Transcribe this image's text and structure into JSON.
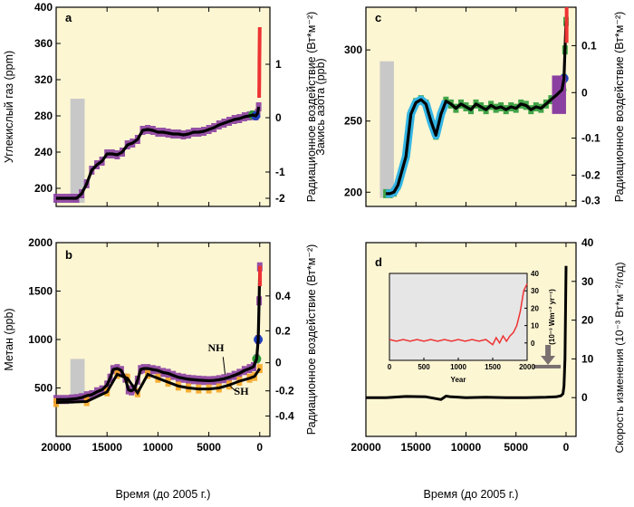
{
  "colors": {
    "panel_bg": "#fdf6d3",
    "inset_bg": "#e6e6e6",
    "core_purple": "#8b3fa0",
    "core_cyan": "#33b5e5",
    "core_green": "#2e9b3a",
    "core_blue": "#1f3fbf",
    "instrumental_red": "#ee3333",
    "orange_sh": "#f5a623",
    "gray_bar": "#c8c8c8",
    "arrow": "#7a7070",
    "curve": "#000000"
  },
  "x_axis_label": "Время (до 2005 г.)",
  "chart_data": [
    {
      "id": "a",
      "type": "line",
      "panel_label": "a",
      "ylabel": "Углекислый газ (ppm)",
      "ylabel_right": "Радиационное воздействие (Вт*м⁻²)",
      "xlim": [
        20000,
        -1000
      ],
      "ylim": [
        180,
        400
      ],
      "x_ticks": [
        20000,
        15000,
        10000,
        5000,
        0
      ],
      "x_tick_labels": [
        "",
        "",
        "",
        "",
        ""
      ],
      "y_ticks": [
        200,
        240,
        280,
        320,
        360,
        400
      ],
      "y_tick_labels": [
        "200",
        "240",
        "280",
        "320",
        "360",
        "400"
      ],
      "right_ticks": [
        -2,
        -1,
        0,
        1
      ],
      "right_tick_labels": [
        "-2",
        "-1",
        "0",
        "1"
      ],
      "right_tick_values": [
        189,
        218,
        278,
        337
      ],
      "gray_bar": {
        "x": [
          18600,
          17200
        ],
        "y": [
          184,
          299
        ]
      },
      "series": [
        {
          "name": "ice-core",
          "color_key": "core_purple",
          "x": [
            20000,
            19500,
            19000,
            18500,
            18000,
            17500,
            17000,
            16500,
            16000,
            15500,
            15000,
            14500,
            14000,
            13500,
            13000,
            12500,
            12000,
            11500,
            11000,
            10500,
            10000,
            9500,
            9000,
            8500,
            8000,
            7500,
            7000,
            6500,
            6000,
            5500,
            5000,
            4500,
            4000,
            3500,
            3000,
            2500,
            2000,
            1500,
            1000,
            700,
            400,
            200,
            100
          ],
          "y": [
            189,
            189,
            189,
            189,
            189,
            194,
            205,
            220,
            226,
            230,
            238,
            238,
            237,
            240,
            248,
            250,
            254,
            264,
            265,
            264,
            262,
            262,
            261,
            260,
            260,
            259,
            260,
            262,
            262,
            263,
            265,
            267,
            270,
            272,
            274,
            276,
            277,
            279,
            280,
            281,
            280,
            283,
            290
          ]
        },
        {
          "name": "instrumental",
          "color_key": "instrumental_red",
          "x": [
            60,
            45,
            30,
            15,
            0
          ],
          "y": [
            300,
            320,
            340,
            360,
            378
          ]
        }
      ]
    },
    {
      "id": "b",
      "type": "line",
      "panel_label": "b",
      "ylabel": "Метан (ppb)",
      "ylabel_right": "Радиационное воздействие (Вт*м⁻²)",
      "xlim": [
        20000,
        -1000
      ],
      "ylim": [
        0,
        2000
      ],
      "x_ticks": [
        20000,
        15000,
        10000,
        5000,
        0
      ],
      "x_tick_labels": [
        "20000",
        "15000",
        "10000",
        "5000",
        "0"
      ],
      "y_ticks": [
        500,
        1000,
        1500,
        2000
      ],
      "y_tick_labels": [
        "500",
        "1000",
        "1500",
        "2000"
      ],
      "right_ticks": [
        -0.4,
        -0.2,
        0,
        0.2,
        0.4
      ],
      "right_tick_labels": [
        "-0.4",
        "-0.2",
        "0",
        "0.2",
        "0.4"
      ],
      "right_tick_values": [
        210,
        470,
        760,
        1090,
        1450
      ],
      "gray_bar": {
        "x": [
          18600,
          17200
        ],
        "y": [
          360,
          800
        ]
      },
      "annotations": [
        {
          "text": "NH",
          "x": 4300,
          "y": 880
        },
        {
          "text": "SH",
          "x": 1800,
          "y": 430
        }
      ],
      "series": [
        {
          "name": "NH",
          "color_key": "core_purple",
          "x": [
            20000,
            19500,
            19000,
            18500,
            18000,
            17500,
            17000,
            16500,
            16000,
            15500,
            15000,
            14700,
            14400,
            14000,
            13600,
            13200,
            12900,
            12600,
            12300,
            12000,
            11700,
            11400,
            11000,
            10500,
            10000,
            9500,
            9000,
            8500,
            8000,
            7500,
            7000,
            6500,
            6000,
            5500,
            5000,
            4500,
            4000,
            3500,
            3000,
            2500,
            2000,
            1500,
            1000,
            600,
            300,
            150,
            60,
            0
          ],
          "y": [
            380,
            380,
            380,
            385,
            390,
            400,
            420,
            430,
            460,
            480,
            530,
            600,
            690,
            700,
            680,
            600,
            480,
            470,
            490,
            580,
            690,
            700,
            700,
            690,
            680,
            660,
            650,
            630,
            610,
            600,
            590,
            585,
            580,
            578,
            575,
            578,
            585,
            595,
            610,
            630,
            650,
            680,
            700,
            720,
            800,
            1000,
            1400,
            1750
          ]
        },
        {
          "name": "SH",
          "color_key": "orange_sh",
          "x": [
            20000,
            17000,
            15000,
            14000,
            13000,
            12000,
            11000,
            10000,
            9000,
            8000,
            7000,
            6000,
            5000,
            4000,
            3000,
            2000,
            1000,
            500,
            0
          ],
          "y": [
            350,
            360,
            460,
            640,
            600,
            450,
            640,
            600,
            560,
            520,
            500,
            490,
            490,
            500,
            530,
            570,
            600,
            620,
            700
          ]
        }
      ]
    },
    {
      "id": "c",
      "type": "line",
      "panel_label": "c",
      "ylabel": "Закись азота (ppb)",
      "ylabel_right": "Радиационное воздействие (Вт*м⁻²)",
      "xlim": [
        20000,
        -1000
      ],
      "ylim": [
        190,
        330
      ],
      "x_ticks": [
        20000,
        15000,
        10000,
        5000,
        0
      ],
      "x_tick_labels": [
        "",
        "",
        "",
        "",
        ""
      ],
      "y_ticks": [
        200,
        250,
        300
      ],
      "y_tick_labels": [
        "200",
        "250",
        "300"
      ],
      "right_ticks": [
        -0.3,
        -0.2,
        -0.1,
        0,
        0.1
      ],
      "right_tick_labels": [
        "-0.3",
        "-0.2",
        "-0.1",
        "0",
        "0.1"
      ],
      "right_tick_values": [
        194,
        212,
        238,
        270,
        303
      ],
      "gray_bar": {
        "x": [
          18600,
          17200
        ],
        "y": [
          196,
          292
        ]
      },
      "series": [
        {
          "name": "ice-core",
          "color_key": "core_green",
          "x": [
            18000,
            17600,
            17200,
            16800,
            16400,
            16000,
            15500,
            15000,
            14500,
            14000,
            13500,
            13000,
            12500,
            12000,
            11500,
            11000,
            10500,
            10000,
            9500,
            9000,
            8500,
            8000,
            7500,
            7000,
            6500,
            6000,
            5500,
            5000,
            4500,
            4000,
            3500,
            3000,
            2500,
            2000,
            1500,
            1000,
            700,
            400,
            200,
            100,
            0
          ],
          "y": [
            199,
            199,
            200,
            205,
            215,
            225,
            255,
            263,
            265,
            262,
            250,
            240,
            255,
            264,
            262,
            259,
            262,
            260,
            258,
            262,
            260,
            258,
            261,
            259,
            260,
            258,
            260,
            259,
            262,
            261,
            258,
            260,
            259,
            262,
            265,
            268,
            270,
            272,
            280,
            300,
            320
          ]
        }
      ]
    },
    {
      "id": "d",
      "type": "line",
      "panel_label": "d",
      "ylabel": "Скорость изменения (10⁻³ Вт*м⁻²/год)",
      "xlim": [
        20000,
        -1000
      ],
      "ylim": [
        -10,
        40
      ],
      "x_ticks": [
        20000,
        15000,
        10000,
        5000,
        0
      ],
      "x_tick_labels": [
        "20000",
        "15000",
        "10000",
        "5000",
        "0"
      ],
      "right_ticks": [
        0,
        10,
        20,
        30,
        40
      ],
      "right_tick_labels": [
        "0",
        "10",
        "20",
        "30",
        "40"
      ],
      "series": [
        {
          "name": "rate",
          "color_key": "curve",
          "x": [
            20000,
            18000,
            16000,
            14000,
            12500,
            12000,
            11500,
            10000,
            8000,
            6000,
            4000,
            2000,
            1000,
            500,
            300,
            200,
            100,
            50,
            0
          ],
          "y": [
            0,
            0,
            0.3,
            0.2,
            -0.5,
            0.4,
            0.2,
            0,
            0.1,
            0,
            0,
            0.1,
            0.2,
            0.5,
            1,
            3,
            10,
            22,
            34
          ]
        }
      ],
      "marker": {
        "x": 1800,
        "y": 8
      },
      "inset": {
        "type": "line",
        "xlabel": "Year",
        "ylabel": "(10⁻³ Wm⁻² yr⁻¹)",
        "xlim": [
          0,
          2000
        ],
        "ylim": [
          -10,
          40
        ],
        "x_ticks": [
          0,
          500,
          1000,
          1500,
          2000
        ],
        "x_tick_labels": [
          "0",
          "500",
          "1000",
          "1500",
          "2000"
        ],
        "y_ticks": [
          0,
          10,
          20,
          30,
          40
        ],
        "y_tick_labels": [
          "0",
          "10",
          "20",
          "30",
          "40"
        ],
        "series": [
          {
            "name": "rate",
            "color_key": "instrumental_red",
            "x": [
              0,
              100,
              200,
              300,
              400,
              500,
              600,
              700,
              800,
              900,
              1000,
              1100,
              1200,
              1300,
              1400,
              1500,
              1550,
              1600,
              1650,
              1700,
              1750,
              1800,
              1850,
              1900,
              1950,
              2000
            ],
            "y": [
              2,
              1,
              2,
              1,
              2,
              1,
              2,
              1,
              2,
              1,
              2,
              1,
              2,
              1,
              2,
              -1,
              3,
              0,
              4,
              1,
              4,
              6,
              10,
              18,
              30,
              34
            ]
          }
        ]
      }
    }
  ]
}
